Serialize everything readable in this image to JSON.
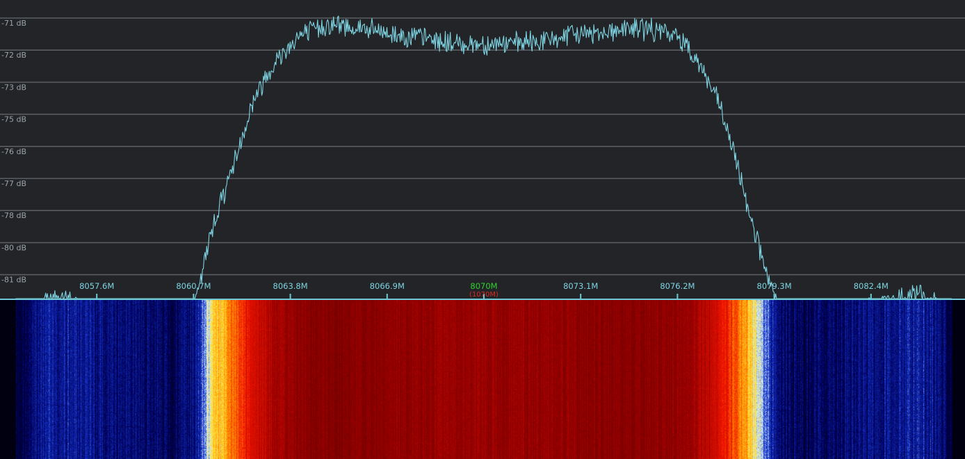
{
  "spectrum": {
    "db_labels": [
      "-71 dB",
      "-72 dB",
      "-73 dB",
      "-75 dB",
      "-76 dB",
      "-77 dB",
      "-78 dB",
      "-80 dB",
      "-81 dB"
    ],
    "freq_labels": [
      "8057.6M",
      "8060.7M",
      "8063.8M",
      "8066.9M",
      "8070M",
      "8073.1M",
      "8076.2M",
      "8079.3M",
      "8082.4M"
    ],
    "center_freq_label": "8070M",
    "center_sub_label": "(1070M)"
  },
  "colors": {
    "background": "#222427",
    "grid": "#5a5e63",
    "trace": "#7fd4e2",
    "axis": "#6fc9d6",
    "center_label": "#2fd12f",
    "center_sub_label": "#e0281e"
  },
  "chart_data": {
    "type": "line",
    "xlabel": "",
    "ylabel": "",
    "xlim": [
      8054.5,
      8085.5
    ],
    "ylim": [
      -81,
      -71
    ],
    "x": [
      8055.0,
      8056.0,
      8057.0,
      8058.0,
      8059.0,
      8060.0,
      8060.7,
      8061.3,
      8062.0,
      8062.6,
      8063.2,
      8064.0,
      8065.0,
      8066.0,
      8067.0,
      8068.0,
      8069.0,
      8070.0,
      8071.0,
      8072.0,
      8073.0,
      8074.0,
      8075.0,
      8076.0,
      8076.5,
      8077.0,
      8077.5,
      8078.0,
      8078.5,
      8079.0,
      8079.5,
      8080.0,
      8081.0,
      8082.0,
      8083.0,
      8084.0,
      8084.5,
      8085.0
    ],
    "y": [
      -80.9,
      -79.7,
      -79.9,
      -80.1,
      -80.3,
      -80.6,
      -80.2,
      -77.5,
      -75.5,
      -73.6,
      -72.5,
      -71.6,
      -71.2,
      -71.3,
      -71.5,
      -71.6,
      -71.8,
      -71.8,
      -71.8,
      -71.7,
      -71.5,
      -71.4,
      -71.3,
      -71.5,
      -71.8,
      -72.6,
      -73.6,
      -75.2,
      -77.0,
      -78.8,
      -80.4,
      -80.6,
      -80.4,
      -80.2,
      -79.9,
      -79.6,
      -80.0,
      -81.0
    ]
  }
}
